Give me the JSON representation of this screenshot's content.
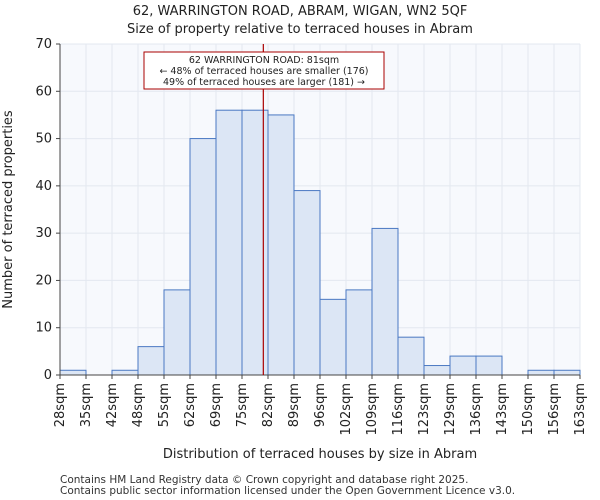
{
  "chart_data": {
    "type": "histogram",
    "title": "62, WARRINGTON ROAD, ABRAM, WIGAN, WN2 5QF",
    "subtitle": "Size of property relative to terraced houses in Abram",
    "xlabel": "Distribution of terraced houses by size in Abram",
    "ylabel": "Number of terraced properties",
    "ylim": [
      0,
      70
    ],
    "yticks": [
      0,
      10,
      20,
      30,
      40,
      50,
      60,
      70
    ],
    "grid": true,
    "categories": [
      "28sqm",
      "35sqm",
      "42sqm",
      "48sqm",
      "55sqm",
      "62sqm",
      "69sqm",
      "75sqm",
      "82sqm",
      "89sqm",
      "96sqm",
      "102sqm",
      "109sqm",
      "116sqm",
      "123sqm",
      "129sqm",
      "136sqm",
      "143sqm",
      "150sqm",
      "156sqm",
      "163sqm"
    ],
    "values": [
      1,
      0,
      1,
      6,
      18,
      50,
      56,
      56,
      55,
      39,
      16,
      18,
      31,
      8,
      2,
      4,
      4,
      0,
      1,
      1
    ],
    "bar_color": "#dce6f5",
    "bar_edge_color": "#4a78c2",
    "marker": {
      "value_sqm": 81,
      "bin_position": 7.82,
      "color": "#aa0000"
    },
    "annotation": {
      "line1": "62 WARRINGTON ROAD: 81sqm",
      "line2": "← 48% of terraced houses are smaller (176)",
      "line3": "49% of terraced houses are larger (181) →"
    }
  },
  "footer": {
    "line1": "Contains HM Land Registry data © Crown copyright and database right 2025.",
    "line2": "Contains public sector information licensed under the Open Government Licence v3.0."
  }
}
